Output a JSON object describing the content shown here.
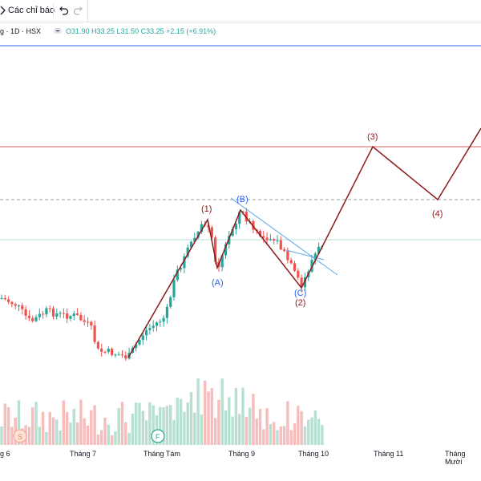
{
  "toolbar": {
    "indicators_label": "Các chỉ báo",
    "undo_icon": "undo-icon",
    "redo_icon": "redo-icon"
  },
  "legend": {
    "symbol_text": "g · 1D · HSX",
    "ohlc_text": "O31.90 H33.25 L31.50 C33.25 +2.15 (+6.91%)"
  },
  "colors": {
    "up": "#26a69a",
    "down": "#ef5350",
    "wave": "#8b1a1a",
    "correction_label": "#2962ff",
    "trendline": "#5aa7e8",
    "resistance": "#d0615b",
    "support": "#9e9e9e"
  },
  "waves": {
    "impulse_labels": [
      "(1)",
      "(2)",
      "(3)",
      "(4)"
    ],
    "correction_labels": [
      "(A)",
      "(B)",
      "(C)"
    ]
  },
  "markers": [
    "S",
    "F"
  ],
  "time_axis": [
    "g 6",
    "Tháng 7",
    "Tháng Tám",
    "Tháng 9",
    "Tháng 10",
    "Tháng 11",
    "Tháng Mười"
  ]
}
